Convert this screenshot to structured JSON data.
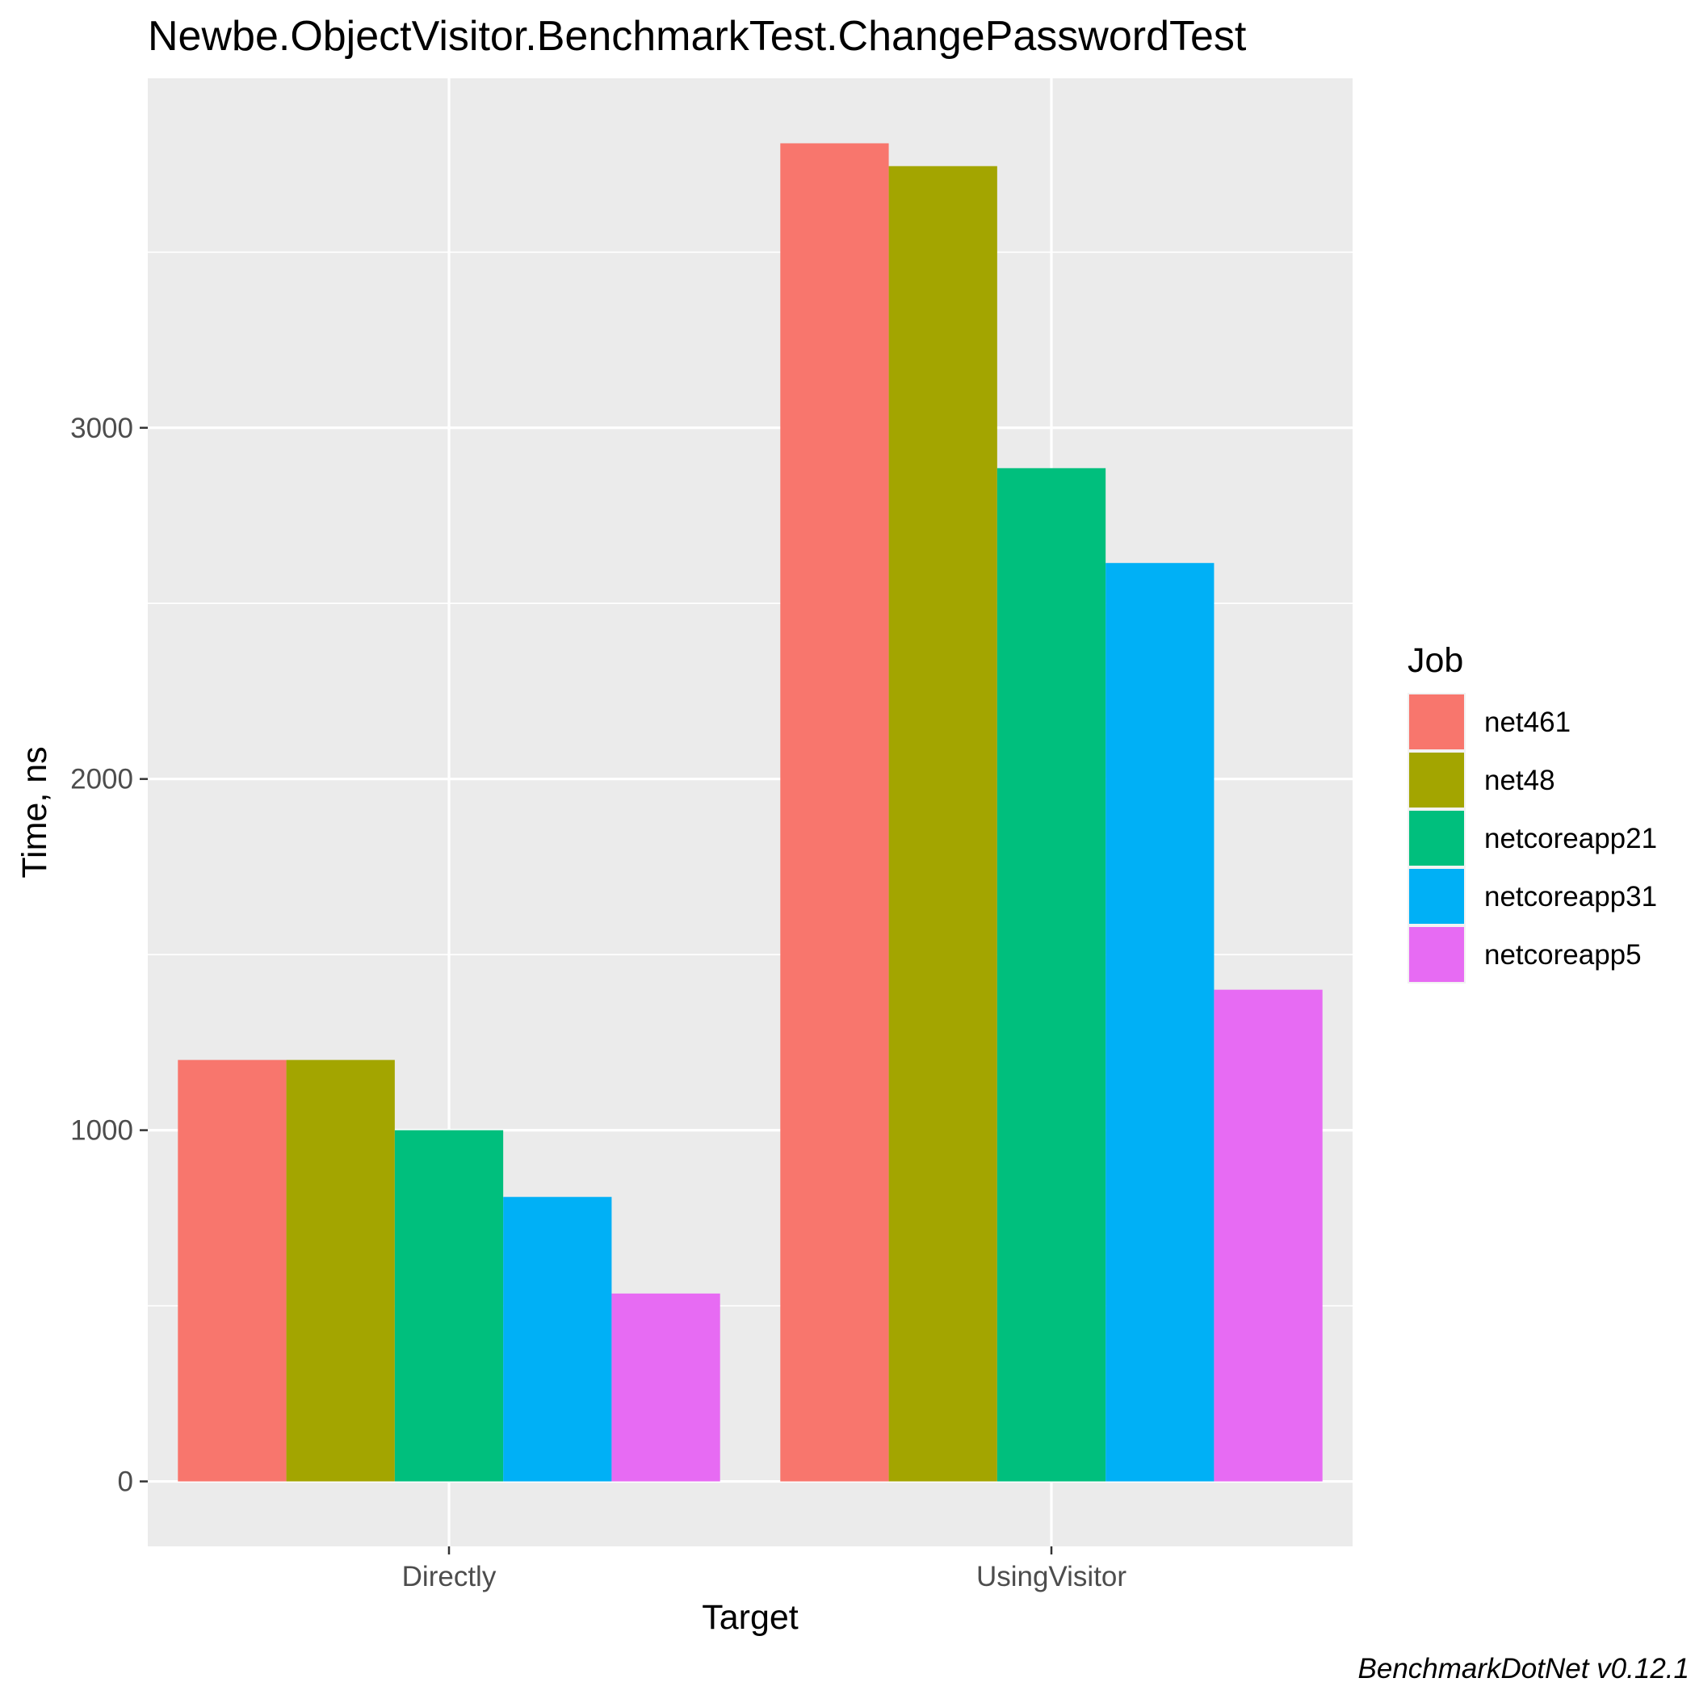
{
  "chart_data": {
    "type": "bar",
    "title": "Newbe.ObjectVisitor.BenchmarkTest.ChangePasswordTest",
    "xlabel": "Target",
    "ylabel": "Time, ns",
    "categories": [
      "Directly",
      "UsingVisitor"
    ],
    "series": [
      {
        "name": "net461",
        "color": "#F8766D",
        "values": [
          1200,
          3810
        ]
      },
      {
        "name": "net48",
        "color": "#A3A500",
        "values": [
          1200,
          3745
        ]
      },
      {
        "name": "netcoreapp21",
        "color": "#00BF7D",
        "values": [
          1000,
          2885
        ]
      },
      {
        "name": "netcoreapp31",
        "color": "#00B0F6",
        "values": [
          810,
          2615
        ]
      },
      {
        "name": "netcoreapp5",
        "color": "#E76BF3",
        "values": [
          535,
          1400
        ]
      }
    ],
    "y_ticks": [
      0,
      1000,
      2000,
      3000
    ],
    "ylim": [
      -185,
      3995
    ],
    "grid": true,
    "legend": {
      "title": "Job",
      "position": "right"
    },
    "caption": "BenchmarkDotNet v0.12.1"
  }
}
